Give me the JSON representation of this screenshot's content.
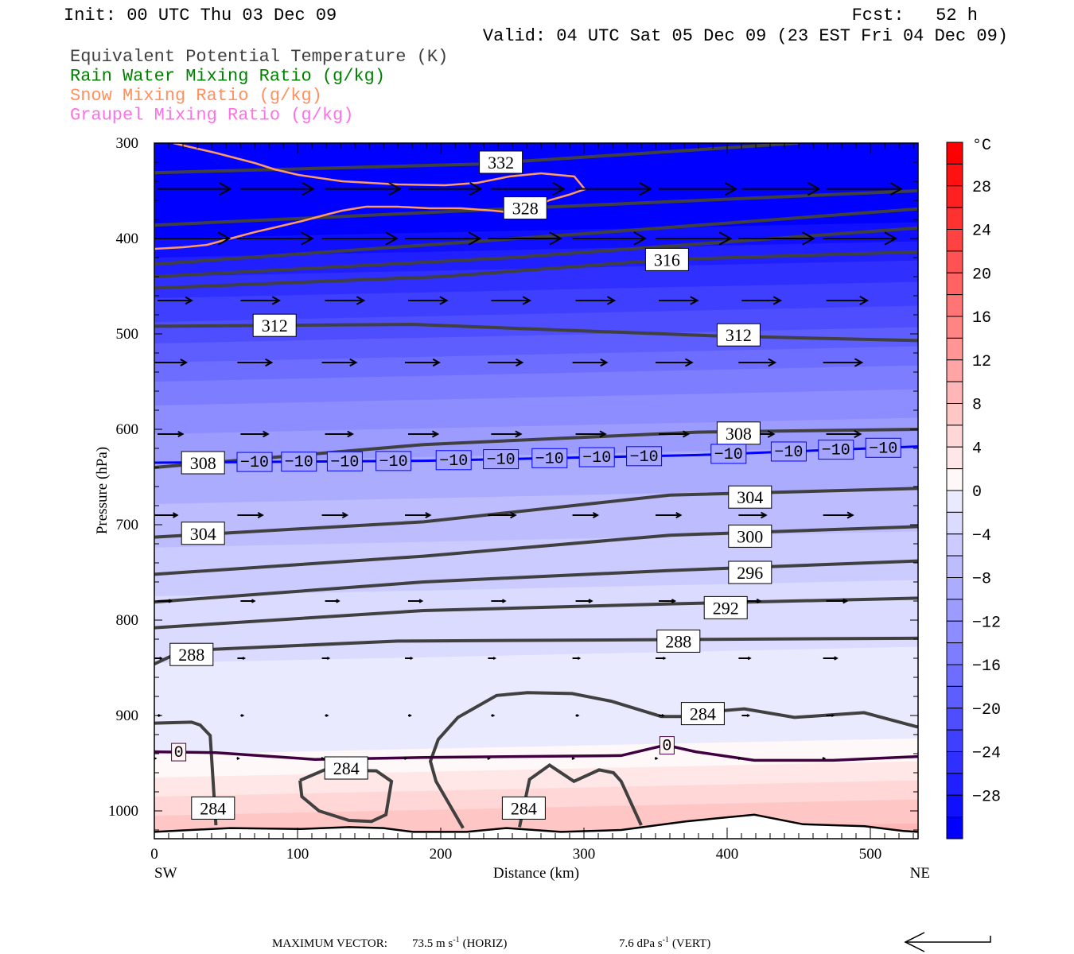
{
  "header": {
    "init": "Init: 00 UTC Thu 03 Dec 09",
    "fcst": "Fcst:   52 h",
    "valid": "Valid: 04 UTC Sat 05 Dec 09 (23 EST Fri 04 Dec 09)"
  },
  "legend": [
    {
      "label": "Equivalent Potential Temperature (K)",
      "color": "#404040"
    },
    {
      "label": "Rain Water Mixing Ratio (g/kg)",
      "color": "#008000"
    },
    {
      "label": "Snow Mixing Ratio (g/kg)",
      "color": "#FF9060"
    },
    {
      "label": "Graupel Mixing Ratio (g/kg)",
      "color": "#FF70E8"
    }
  ],
  "footer": {
    "max_vector_label": "MAXIMUM VECTOR:",
    "horiz": "73.5 m s",
    "horiz_exp": "-1",
    "horiz_tag": "(HORIZ)",
    "vert": "7.6 dPa s",
    "vert_exp": "-1",
    "vert_tag": "(VERT)"
  },
  "chart_data": {
    "type": "cross-section",
    "xlabel": "Distance (km)",
    "ylabel": "Pressure (hPa)",
    "xlim": [
      0,
      533
    ],
    "ylim": [
      300,
      1029
    ],
    "x_ticks": [
      "0",
      "100",
      "200",
      "300",
      "400",
      "500"
    ],
    "y_ticks": [
      "300",
      "400",
      "500",
      "600",
      "700",
      "800",
      "900",
      "1000"
    ],
    "left_end": "SW",
    "right_end": "NE",
    "colorbar": {
      "unit": "°C",
      "min": -32,
      "max": 32,
      "step": 2,
      "labels": [
        "28",
        "24",
        "20",
        "16",
        "12",
        "8",
        "4",
        "0",
        "−4",
        "−8",
        "−12",
        "−16",
        "−20",
        "−24",
        "−28"
      ]
    },
    "temperature_profile": [
      [
        300,
        -44
      ],
      [
        360,
        -34
      ],
      [
        400,
        -30
      ],
      [
        450,
        -25
      ],
      [
        500,
        -21
      ],
      [
        560,
        -15
      ],
      [
        635,
        -10
      ],
      [
        700,
        -7
      ],
      [
        760,
        -4.5
      ],
      [
        820,
        -2.5
      ],
      [
        870,
        -1.5
      ],
      [
        941,
        0
      ],
      [
        965,
        2
      ],
      [
        985,
        4
      ],
      [
        1005,
        6
      ],
      [
        1030,
        8
      ]
    ],
    "temperature_tilt_hpa": 17,
    "theta_e_contours": [
      {
        "value": 332,
        "points": [
          [
            0,
            331
          ],
          [
            226,
            322
          ],
          [
            450,
            300
          ]
        ]
      },
      {
        "value": 328,
        "points": [
          [
            0,
            386
          ],
          [
            260,
            368
          ],
          [
            533,
            350
          ]
        ]
      },
      {
        "value": 324,
        "points": [
          [
            0,
            427
          ],
          [
            300,
            395
          ],
          [
            533,
            369
          ]
        ]
      },
      {
        "value": 320,
        "points": [
          [
            0,
            440
          ],
          [
            250,
            420
          ],
          [
            533,
            389
          ]
        ]
      },
      {
        "value": 316,
        "points": [
          [
            0,
            452
          ],
          [
            200,
            440
          ],
          [
            360,
            422
          ],
          [
            533,
            414
          ]
        ]
      },
      {
        "value": 312,
        "points": [
          [
            0,
            492
          ],
          [
            180,
            490
          ],
          [
            390,
            502
          ],
          [
            533,
            507
          ]
        ]
      },
      {
        "value": 308,
        "points": [
          [
            0,
            640
          ],
          [
            188,
            616
          ],
          [
            379,
            603
          ],
          [
            533,
            600
          ]
        ]
      },
      {
        "value": 304,
        "points": [
          [
            0,
            713
          ],
          [
            188,
            697
          ],
          [
            360,
            669
          ],
          [
            533,
            662
          ]
        ]
      },
      {
        "value": 300,
        "points": [
          [
            0,
            752
          ],
          [
            188,
            733
          ],
          [
            360,
            711
          ],
          [
            533,
            702
          ]
        ]
      },
      {
        "value": 296,
        "points": [
          [
            0,
            781
          ],
          [
            188,
            760
          ],
          [
            360,
            748
          ],
          [
            533,
            738
          ]
        ]
      },
      {
        "value": 292,
        "points": [
          [
            0,
            808
          ],
          [
            188,
            790
          ],
          [
            360,
            783
          ],
          [
            533,
            777
          ]
        ]
      },
      {
        "value": 288,
        "points": [
          [
            0,
            846
          ],
          [
            20,
            832
          ],
          [
            170,
            822
          ],
          [
            533,
            819
          ]
        ]
      },
      {
        "value": 284,
        "points": [
          [
            0,
            908
          ],
          [
            26,
            907
          ],
          [
            32,
            910
          ],
          [
            39,
            921
          ],
          [
            43,
            1015
          ]
        ]
      },
      {
        "value": 284,
        "points": [
          [
            101.7,
            968
          ],
          [
            118.9,
            957
          ],
          [
            155,
            958
          ],
          [
            165.6,
            969
          ],
          [
            161.7,
            1004
          ],
          [
            151.7,
            1011
          ],
          [
            136,
            1010
          ],
          [
            115,
            1000
          ],
          [
            103,
            985
          ],
          [
            101.7,
            968
          ]
        ]
      },
      {
        "value": 284,
        "points": [
          [
            215.6,
            1018
          ],
          [
            196.7,
            969
          ],
          [
            192.8,
            948
          ],
          [
            198.3,
            925
          ],
          [
            212,
            902
          ],
          [
            239,
            879
          ],
          [
            260.6,
            876
          ],
          [
            291.7,
            877
          ],
          [
            319,
            885
          ],
          [
            354,
            901
          ],
          [
            371,
            901
          ],
          [
            388,
            896
          ],
          [
            412,
            893
          ],
          [
            447,
            902
          ],
          [
            495.6,
            897
          ],
          [
            533,
            912
          ]
        ]
      },
      {
        "value": 284,
        "points": [
          [
            255,
            1017
          ],
          [
            262,
            967
          ],
          [
            276,
            952
          ],
          [
            293,
            969
          ],
          [
            310.6,
            957
          ],
          [
            320.6,
            960
          ],
          [
            326,
            969
          ],
          [
            340,
            1015
          ]
        ]
      }
    ],
    "theta_e_labels": [
      {
        "text": "332",
        "km": 242,
        "p": 320
      },
      {
        "text": "328",
        "km": 259,
        "p": 368
      },
      {
        "text": "316",
        "km": 358,
        "p": 422
      },
      {
        "text": "312",
        "km": 84,
        "p": 491
      },
      {
        "text": "312",
        "km": 408,
        "p": 501
      },
      {
        "text": "308",
        "km": 34,
        "p": 635
      },
      {
        "text": "308",
        "km": 408,
        "p": 604
      },
      {
        "text": "304",
        "km": 34,
        "p": 709
      },
      {
        "text": "304",
        "km": 416,
        "p": 671
      },
      {
        "text": "300",
        "km": 416,
        "p": 712
      },
      {
        "text": "296",
        "km": 416,
        "p": 750
      },
      {
        "text": "292",
        "km": 399,
        "p": 787
      },
      {
        "text": "288",
        "km": 26,
        "p": 836
      },
      {
        "text": "288",
        "km": 366,
        "p": 822
      },
      {
        "text": "284",
        "km": 383,
        "p": 898
      },
      {
        "text": "284",
        "km": 134,
        "p": 955
      },
      {
        "text": "284",
        "km": 41,
        "p": 997
      },
      {
        "text": "284",
        "km": 258,
        "p": 997
      }
    ],
    "isotherm_minus10": {
      "label": "−10",
      "points": [
        [
          0,
          635
        ],
        [
          188,
          633
        ],
        [
          380,
          627
        ],
        [
          533,
          618
        ]
      ],
      "label_km": [
        70,
        101,
        133,
        167,
        209,
        242,
        276,
        309,
        342,
        401,
        443,
        476,
        509
      ]
    },
    "isotherm_zero": {
      "label": "0",
      "points": [
        [
          0,
          938
        ],
        [
          43,
          939
        ],
        [
          112,
          946
        ],
        [
          188,
          944
        ],
        [
          326,
          942
        ],
        [
          357,
          931
        ],
        [
          378,
          938
        ],
        [
          419,
          947
        ],
        [
          474,
          947
        ],
        [
          533,
          943
        ]
      ],
      "label_km": [
        17,
        358
      ]
    },
    "snow_contour": [
      [
        13.3,
        300
      ],
      [
        42.2,
        310
      ],
      [
        70,
        320.8
      ],
      [
        83.9,
        327.5
      ],
      [
        100.6,
        333.3
      ],
      [
        131,
        340
      ],
      [
        170,
        343.3
      ],
      [
        203,
        344.2
      ],
      [
        225.6,
        341.7
      ],
      [
        247.8,
        335
      ],
      [
        270,
        331.7
      ],
      [
        293.3,
        335
      ],
      [
        300.6,
        348.3
      ],
      [
        289.4,
        354.2
      ],
      [
        275.6,
        360
      ],
      [
        264.4,
        368.3
      ],
      [
        253.3,
        373.3
      ],
      [
        236.7,
        370.8
      ],
      [
        214.4,
        368.3
      ],
      [
        192.2,
        368.3
      ],
      [
        170,
        366.7
      ],
      [
        147.8,
        366.7
      ],
      [
        131,
        370.8
      ],
      [
        120,
        375
      ],
      [
        103.3,
        381.7
      ],
      [
        86.7,
        387.5
      ],
      [
        70,
        393.3
      ],
      [
        53.3,
        400
      ],
      [
        36.7,
        406.7
      ],
      [
        20,
        409.2
      ],
      [
        0,
        410.8
      ]
    ],
    "terrain": [
      [
        0,
        1022
      ],
      [
        25.6,
        1020
      ],
      [
        53,
        1018
      ],
      [
        101.7,
        1019
      ],
      [
        136,
        1017
      ],
      [
        160,
        1018
      ],
      [
        180.6,
        1022
      ],
      [
        218,
        1022
      ],
      [
        246,
        1018
      ],
      [
        284,
        1022
      ],
      [
        326,
        1020
      ],
      [
        371,
        1011
      ],
      [
        419,
        1004
      ],
      [
        453,
        1014
      ],
      [
        496,
        1016
      ],
      [
        523,
        1021
      ],
      [
        533,
        1022
      ]
    ],
    "wind_vectors": {
      "max_horiz_ms": 73.5,
      "column_km": [
        0,
        58,
        117,
        175,
        233,
        292,
        350,
        408,
        467
      ],
      "rows": [
        {
          "p": 348,
          "u": [
            64,
            64,
            66,
            64,
            64,
            66,
            68,
            68,
            66
          ]
        },
        {
          "p": 400,
          "u": [
            66,
            66,
            66,
            66,
            64,
            64,
            66,
            66,
            64
          ]
        },
        {
          "p": 465,
          "u": [
            30,
            34,
            34,
            34,
            34,
            34,
            34,
            34,
            36
          ]
        },
        {
          "p": 530,
          "u": [
            28,
            30,
            30,
            30,
            30,
            30,
            32,
            32,
            34
          ]
        },
        {
          "p": 605,
          "u": [
            22,
            24,
            24,
            26,
            26,
            26,
            26,
            28,
            30
          ]
        },
        {
          "p": 690,
          "u": [
            20,
            22,
            22,
            22,
            24,
            22,
            22,
            24,
            26
          ]
        },
        {
          "p": 780,
          "u": [
            12,
            12,
            12,
            12,
            12,
            14,
            14,
            16,
            18
          ]
        },
        {
          "p": 840,
          "u": [
            6,
            6,
            6,
            6,
            6,
            6,
            8,
            10,
            12
          ]
        },
        {
          "p": 900,
          "u": [
            2,
            2,
            2,
            2,
            2,
            2,
            4,
            6,
            6
          ]
        },
        {
          "p": 945,
          "u": [
            1,
            1,
            1,
            1,
            1,
            1,
            1,
            1,
            1
          ]
        }
      ]
    }
  }
}
